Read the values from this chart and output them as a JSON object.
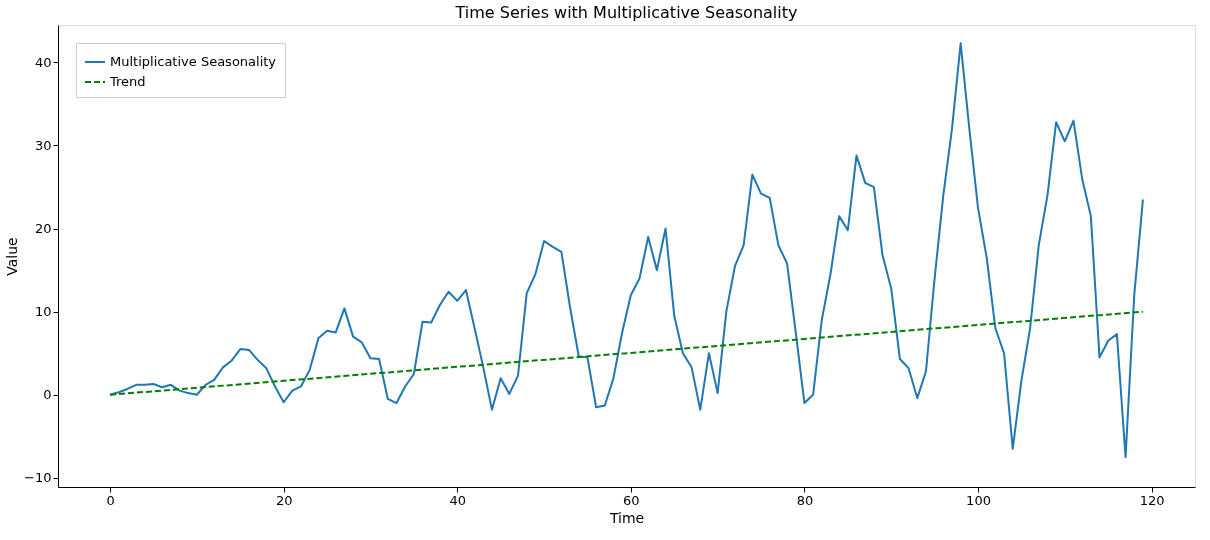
{
  "chart_data": {
    "type": "line",
    "title": "Time Series with Multiplicative Seasonality",
    "xlabel": "Time",
    "ylabel": "Value",
    "x": [
      0,
      1,
      2,
      3,
      4,
      5,
      6,
      7,
      8,
      9,
      10,
      11,
      12,
      13,
      14,
      15,
      16,
      17,
      18,
      19,
      20,
      21,
      22,
      23,
      24,
      25,
      26,
      27,
      28,
      29,
      30,
      31,
      32,
      33,
      34,
      35,
      36,
      37,
      38,
      39,
      40,
      41,
      42,
      43,
      44,
      45,
      46,
      47,
      48,
      49,
      50,
      51,
      52,
      53,
      54,
      55,
      56,
      57,
      58,
      59,
      60,
      61,
      62,
      63,
      64,
      65,
      66,
      67,
      68,
      69,
      70,
      71,
      72,
      73,
      74,
      75,
      76,
      77,
      78,
      79,
      80,
      81,
      82,
      83,
      84,
      85,
      86,
      87,
      88,
      89,
      90,
      91,
      92,
      93,
      94,
      95,
      96,
      97,
      98,
      99,
      100,
      101,
      102,
      103,
      104,
      105,
      106,
      107,
      108,
      109,
      110,
      111,
      112,
      113,
      114,
      115,
      116,
      117,
      118,
      119
    ],
    "series": [
      {
        "name": "Multiplicative Seasonality",
        "color": "#1f77b4",
        "line_style": "solid",
        "values": [
          0,
          0.3,
          0.7,
          1.2,
          1.2,
          1.3,
          0.9,
          1.2,
          0.5,
          0.2,
          0.0,
          1.2,
          1.8,
          3.3,
          4.1,
          5.5,
          5.4,
          4.2,
          3.2,
          1.0,
          -0.9,
          0.5,
          1.0,
          3.0,
          6.8,
          7.7,
          7.5,
          10.4,
          7.0,
          6.3,
          4.4,
          4.3,
          -0.5,
          -1.0,
          1.0,
          2.5,
          8.8,
          8.7,
          10.8,
          12.4,
          11.3,
          12.6,
          8.0,
          3.3,
          -1.8,
          2.0,
          0.1,
          2.3,
          12.2,
          14.5,
          18.5,
          17.8,
          17.2,
          10.5,
          4.6,
          4.5,
          -1.5,
          -1.3,
          2.0,
          7.5,
          12.0,
          14.0,
          19.0,
          15.0,
          20.0,
          9.5,
          5.0,
          3.3,
          -1.8,
          5.0,
          0.2,
          10.0,
          15.5,
          18.0,
          26.5,
          24.2,
          23.7,
          18.0,
          15.8,
          7.5,
          -1.0,
          0.0,
          9.0,
          14.5,
          21.5,
          19.8,
          28.8,
          25.5,
          25.0,
          16.8,
          12.8,
          4.3,
          3.2,
          -0.4,
          2.8,
          14.0,
          24.0,
          32.0,
          42.3,
          32.0,
          22.5,
          16.5,
          8.0,
          5.0,
          -6.5,
          1.7,
          8.0,
          18.0,
          24.0,
          32.8,
          30.5,
          33.0,
          26.0,
          21.5,
          4.5,
          6.5,
          7.3,
          -7.5,
          12.0,
          23.5
        ]
      },
      {
        "name": "Trend",
        "color": "#008000",
        "line_style": "dashed",
        "x": [
          0,
          119
        ],
        "values": [
          0,
          10
        ]
      }
    ],
    "xlim": [
      -6,
      125
    ],
    "ylim": [
      -11.1,
      44.5
    ],
    "xticks": [
      0,
      20,
      40,
      60,
      80,
      100,
      120
    ],
    "yticks": [
      -10,
      0,
      10,
      20,
      30,
      40
    ],
    "legend": "top left",
    "grid": false,
    "marker": "none"
  }
}
